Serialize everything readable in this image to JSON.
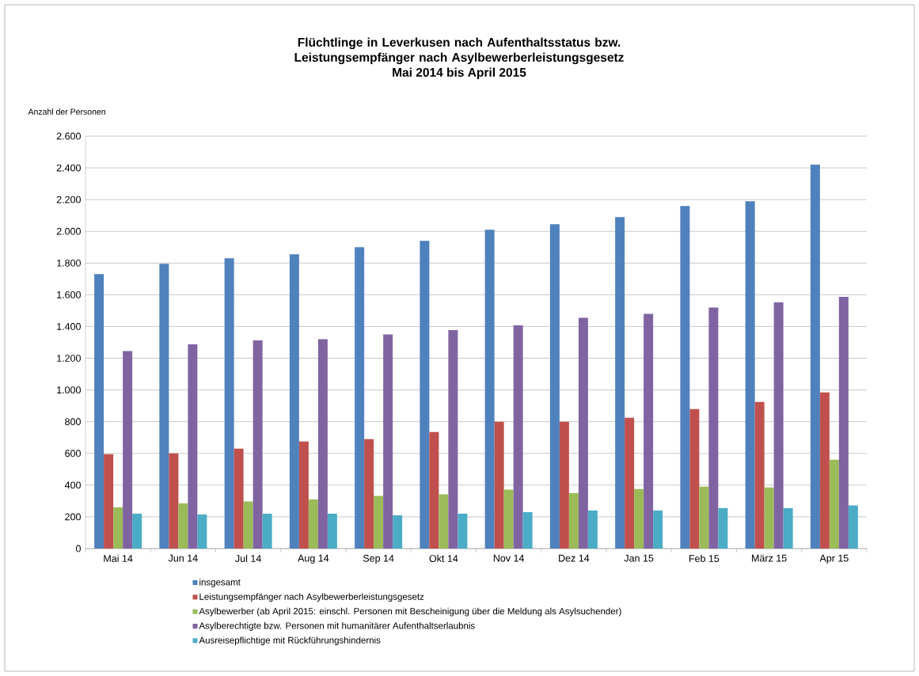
{
  "chart_data": {
    "type": "bar",
    "title": "Flüchtlinge in Leverkusen nach Aufenthaltsstatus bzw. Leistungsempfänger nach Asylbewerberleistungsgesetz",
    "subtitle": "Mai 2014 bis April 2015",
    "ylabel": "Anzahl der Personen",
    "categories": [
      "Mai 14",
      "Jun 14",
      "Jul 14",
      "Aug 14",
      "Sep 14",
      "Okt 14",
      "Nov 14",
      "Dez 14",
      "Jan 15",
      "Feb 15",
      "März 15",
      "Apr 15"
    ],
    "series": [
      {
        "name": "insgesamt",
        "color": "#4f81bd",
        "values": [
          1730,
          1795,
          1830,
          1855,
          1900,
          1940,
          2010,
          2045,
          2090,
          2160,
          2190,
          2420
        ]
      },
      {
        "name": "Leistungsempfänger nach Asylbewerberleistungsgesetz",
        "color": "#c0504d",
        "values": [
          595,
          600,
          630,
          675,
          690,
          735,
          800,
          800,
          825,
          880,
          925,
          985
        ]
      },
      {
        "name": "Asylbewerber (ab April 2015: einschl. Personen mit Bescheinigung über die Meldung als Asylsuchender)",
        "color": "#9bbb59",
        "values": [
          260,
          285,
          297,
          310,
          332,
          342,
          372,
          350,
          375,
          390,
          385,
          560
        ]
      },
      {
        "name": "Asylberechtigte bzw. Personen mit humanitärer Aufenthaltserlaubnis",
        "color": "#8064a2",
        "values": [
          1245,
          1287,
          1312,
          1320,
          1350,
          1377,
          1407,
          1455,
          1480,
          1520,
          1552,
          1587
        ]
      },
      {
        "name": "Ausreisepflichtige mit Rückführungshindernis",
        "color": "#4bacc6",
        "values": [
          220,
          215,
          220,
          220,
          210,
          220,
          230,
          240,
          240,
          255,
          255,
          272
        ]
      }
    ],
    "ylim": [
      0,
      2600
    ],
    "yticks": [
      {
        "value": 0,
        "label": "0"
      },
      {
        "value": 200,
        "label": "200"
      },
      {
        "value": 400,
        "label": "400"
      },
      {
        "value": 600,
        "label": "600"
      },
      {
        "value": 800,
        "label": "800"
      },
      {
        "value": 1000,
        "label": "1.000"
      },
      {
        "value": 1200,
        "label": "1.200"
      },
      {
        "value": 1400,
        "label": "1.400"
      },
      {
        "value": 1600,
        "label": "1.600"
      },
      {
        "value": 1800,
        "label": "1.800"
      },
      {
        "value": 2000,
        "label": "2.000"
      },
      {
        "value": 2200,
        "label": "2.200"
      },
      {
        "value": 2400,
        "label": "2.400"
      },
      {
        "value": 2600,
        "label": "2.600"
      }
    ],
    "grid": "y",
    "legend": "bottom"
  }
}
